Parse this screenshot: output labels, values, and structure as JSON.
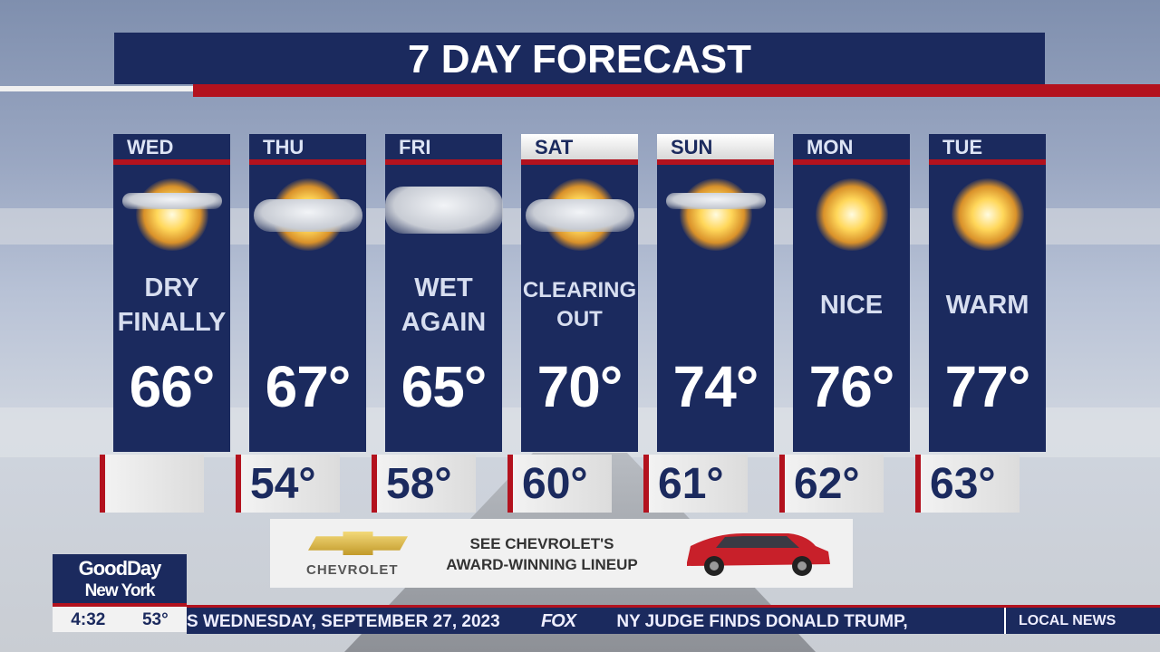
{
  "title": "7 DAY FORECAST",
  "days": [
    {
      "day": "WED",
      "icon": "partly-sunny-icon",
      "condition": [
        "DRY",
        "FINALLY"
      ],
      "high": "66°",
      "low": ""
    },
    {
      "day": "THU",
      "icon": "partly-cloudy-icon",
      "condition": [
        "",
        ""
      ],
      "high": "67°",
      "low": "54°"
    },
    {
      "day": "FRI",
      "icon": "cloudy-icon",
      "condition": [
        "WET",
        "AGAIN"
      ],
      "high": "65°",
      "low": "58°"
    },
    {
      "day": "SAT",
      "icon": "partly-cloudy-icon",
      "condition": [
        "CLEARING",
        "OUT"
      ],
      "high": "70°",
      "low": "60°"
    },
    {
      "day": "SUN",
      "icon": "partly-sunny-icon",
      "condition": [
        "",
        ""
      ],
      "high": "74°",
      "low": "61°"
    },
    {
      "day": "MON",
      "icon": "sunny-icon",
      "condition": [
        "NICE",
        ""
      ],
      "high": "76°",
      "low": "62°"
    },
    {
      "day": "TUE",
      "icon": "sunny-icon",
      "condition": [
        "WARM",
        ""
      ],
      "high": "77°",
      "low": "63°"
    }
  ],
  "ad": {
    "brand": "CHEVROLET",
    "text1": "SEE CHEVROLET'S",
    "text2": "AWARD-WINNING LINEUP"
  },
  "show": {
    "line1": "GoodDay",
    "line2": "New York",
    "time": "4:32",
    "temp": "53°"
  },
  "ticker": {
    "date": "S WEDNESDAY, SEPTEMBER 27, 2023",
    "network": "FOX",
    "headline": "NY JUDGE FINDS DONALD TRUMP,",
    "section": "LOCAL NEWS"
  },
  "colors": {
    "navy": "#1b2a5e",
    "red": "#b3121e"
  }
}
